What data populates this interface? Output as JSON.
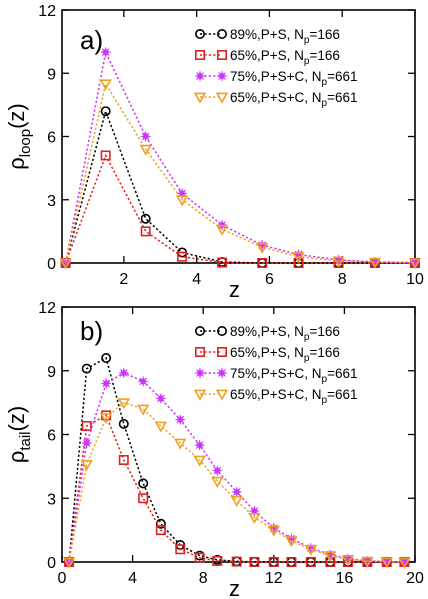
{
  "chart_data": [
    {
      "type": "line",
      "panel_label": "a)",
      "xlabel": "z",
      "ylabel_main": "ρ",
      "ylabel_sub": "loop",
      "ylabel_tail": "(z)",
      "xlim": [
        0.3,
        10
      ],
      "ylim": [
        0,
        12
      ],
      "xticks": [
        2,
        4,
        6,
        8,
        10
      ],
      "yticks": [
        0,
        3,
        6,
        9,
        12
      ],
      "legend_position": "top-right",
      "series": [
        {
          "name": "89%,P+S, N",
          "sub": "p",
          "suffix": "=166",
          "color": "#000000",
          "marker": "circle",
          "x": [
            0.4,
            1.5,
            2.6,
            3.6,
            4.7,
            5.8,
            6.8,
            7.9,
            8.9,
            10.0
          ],
          "y": [
            0.0,
            7.2,
            2.1,
            0.5,
            0.05,
            0.0,
            0.0,
            0.0,
            0.0,
            0.0
          ]
        },
        {
          "name": "65%,P+S, N",
          "sub": "p",
          "suffix": "=166",
          "color": "#dd2222",
          "marker": "square",
          "x": [
            0.4,
            1.5,
            2.6,
            3.6,
            4.7,
            5.8,
            6.8,
            7.9,
            8.9,
            10.0
          ],
          "y": [
            0.0,
            5.1,
            1.5,
            0.3,
            0.02,
            0.0,
            0.0,
            0.0,
            0.0,
            0.0
          ]
        },
        {
          "name": "75%,P+S+C, N",
          "sub": "p",
          "suffix": "=661",
          "color": "#cc33ff",
          "marker": "star",
          "x": [
            0.4,
            1.5,
            2.6,
            3.6,
            4.7,
            5.8,
            6.8,
            7.9,
            8.9,
            10.0
          ],
          "y": [
            0.0,
            10.0,
            6.0,
            3.3,
            1.8,
            0.85,
            0.4,
            0.15,
            0.05,
            0.02
          ]
        },
        {
          "name": "65%,P+S+C, N",
          "sub": "p",
          "suffix": "=661",
          "color": "#f0a020",
          "marker": "triangle-down",
          "x": [
            0.4,
            1.5,
            2.6,
            3.6,
            4.7,
            5.8,
            6.8,
            7.9,
            8.9,
            10.0
          ],
          "y": [
            0.0,
            8.5,
            5.4,
            3.0,
            1.6,
            0.75,
            0.3,
            0.1,
            0.04,
            0.01
          ]
        }
      ]
    },
    {
      "type": "line",
      "panel_label": "b)",
      "xlabel": "z",
      "ylabel_main": "ρ",
      "ylabel_sub": "tail",
      "ylabel_tail": "(z)",
      "xlim": [
        0,
        20
      ],
      "ylim": [
        0,
        12
      ],
      "xticks": [
        0,
        4,
        8,
        12,
        16,
        20
      ],
      "yticks": [
        0,
        3,
        6,
        9,
        12
      ],
      "legend_position": "top-right",
      "series": [
        {
          "name": "89%,P+S, N",
          "sub": "p",
          "suffix": "=166",
          "color": "#000000",
          "marker": "circle",
          "x": [
            0.4,
            1.4,
            2.5,
            3.5,
            4.6,
            5.6,
            6.7,
            7.8,
            8.8,
            9.9,
            10.9,
            12.0,
            13.0,
            14.1,
            15.2,
            16.2,
            17.3,
            18.4,
            19.4
          ],
          "y": [
            0.0,
            9.1,
            9.6,
            6.5,
            3.7,
            1.8,
            0.8,
            0.3,
            0.1,
            0.03,
            0.01,
            0.0,
            0.0,
            0.0,
            0.0,
            0.0,
            0.0,
            0.0,
            0.0
          ]
        },
        {
          "name": "65%,P+S, N",
          "sub": "p",
          "suffix": "=166",
          "color": "#dd2222",
          "marker": "square",
          "x": [
            0.4,
            1.4,
            2.5,
            3.5,
            4.6,
            5.6,
            6.7,
            7.8,
            8.8,
            9.9,
            10.9,
            12.0,
            13.0,
            14.1,
            15.2,
            16.2,
            17.3,
            18.4,
            19.4
          ],
          "y": [
            0.0,
            6.4,
            6.9,
            4.8,
            3.0,
            1.5,
            0.6,
            0.2,
            0.05,
            0.02,
            0.0,
            0.0,
            0.0,
            0.0,
            0.0,
            0.0,
            0.0,
            0.0,
            0.0
          ]
        },
        {
          "name": "75%,P+S+C, N",
          "sub": "p",
          "suffix": "=661",
          "color": "#cc33ff",
          "marker": "star",
          "x": [
            0.4,
            1.4,
            2.5,
            3.5,
            4.6,
            5.6,
            6.7,
            7.8,
            8.8,
            9.9,
            10.9,
            12.0,
            13.0,
            14.1,
            15.2,
            16.2,
            17.3,
            18.4,
            19.4
          ],
          "y": [
            0.0,
            5.6,
            8.4,
            8.9,
            8.5,
            7.7,
            6.7,
            5.5,
            4.3,
            3.3,
            2.4,
            1.6,
            1.1,
            0.65,
            0.35,
            0.15,
            0.05,
            0.02,
            0.0
          ]
        },
        {
          "name": "65%,P+S+C, N",
          "sub": "p",
          "suffix": "=661",
          "color": "#f0a020",
          "marker": "triangle-down",
          "x": [
            0.4,
            1.4,
            2.5,
            3.5,
            4.6,
            5.6,
            6.7,
            7.8,
            8.8,
            9.9,
            10.9,
            12.0,
            13.0,
            14.1,
            15.2,
            16.2,
            17.3,
            18.4,
            19.4
          ],
          "y": [
            0.0,
            4.6,
            6.8,
            7.5,
            7.2,
            6.4,
            5.6,
            4.8,
            3.8,
            2.9,
            2.1,
            1.5,
            1.0,
            0.6,
            0.3,
            0.12,
            0.04,
            0.01,
            0.0
          ]
        }
      ]
    }
  ]
}
